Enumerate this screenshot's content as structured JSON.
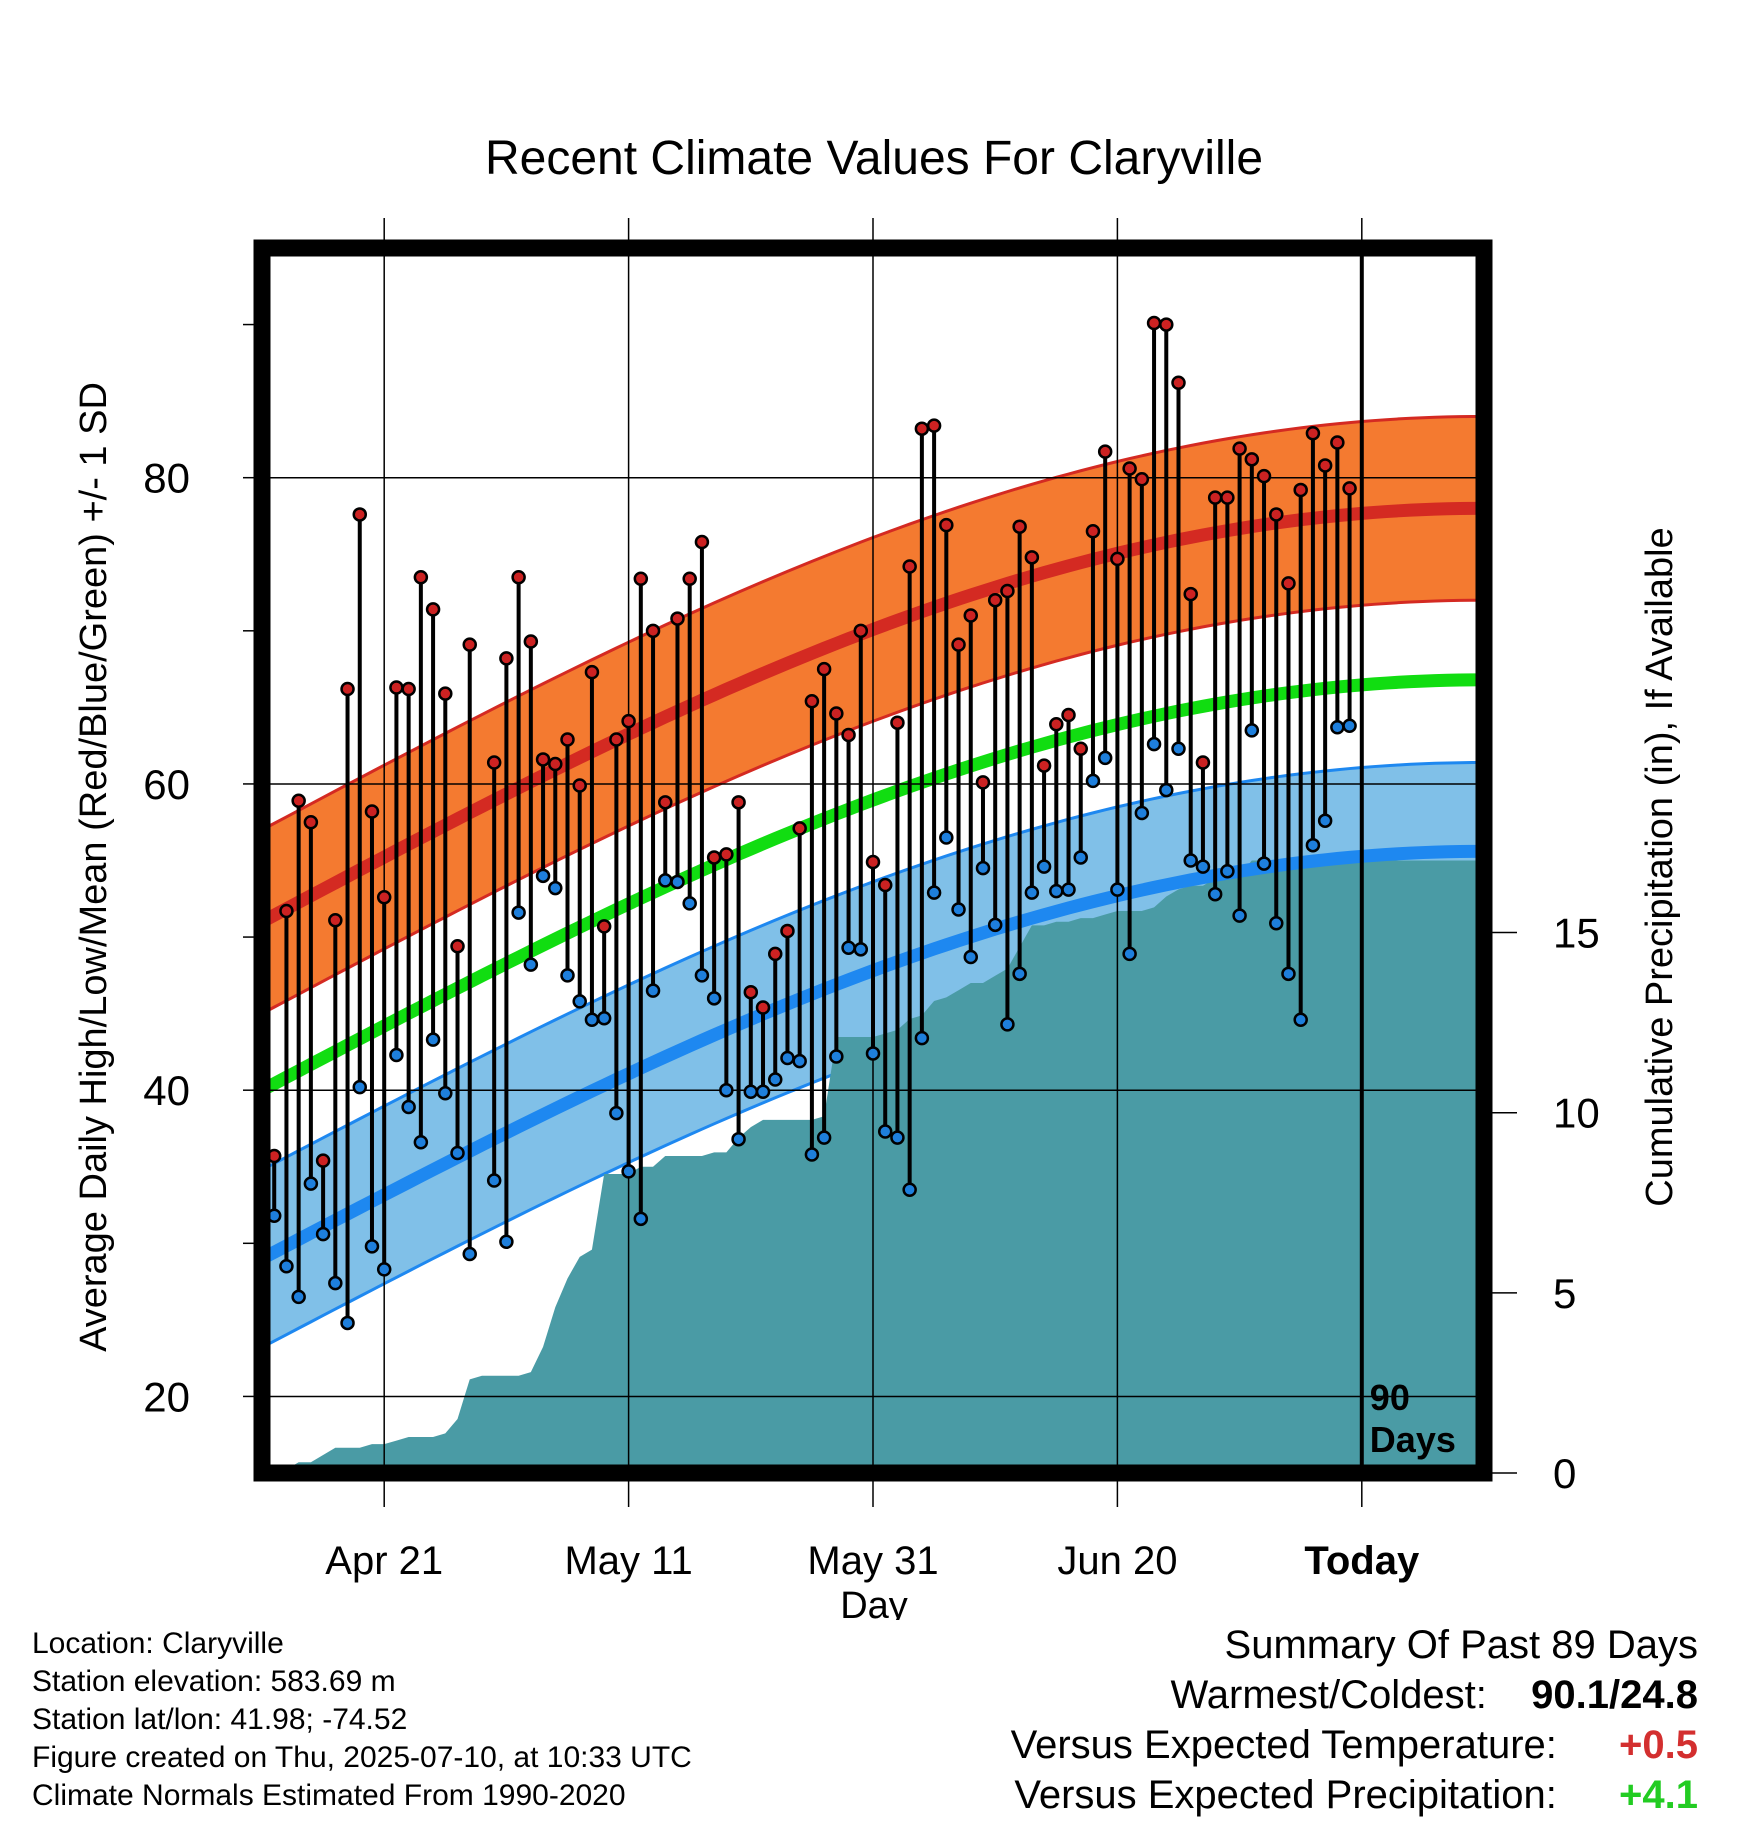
{
  "chart_data": {
    "type": "line",
    "title": "Recent Climate Values For Claryville",
    "xlabel": "Day",
    "ylabel_left": "Average Daily High/Low/Mean (Red/Blue/Green) +/- 1 SD",
    "ylabel_right": "Cumulative Precipitation (in), If Available",
    "x_ticks": [
      "Apr 21",
      "May 11",
      "May 31",
      "Jun 20",
      "Today"
    ],
    "x_tick_day_index": [
      10,
      30,
      50,
      70,
      90
    ],
    "y_left_ticks": [
      "20",
      "40",
      "60",
      "80"
    ],
    "y_right_ticks": [
      "0",
      "5",
      "10",
      "15"
    ],
    "ylim_left": [
      15,
      95
    ],
    "ylim_right": [
      0,
      34
    ],
    "xlim_days": [
      0,
      100
    ],
    "today_marker_label": [
      "90",
      "Days"
    ],
    "normal_high": {
      "mean": [
        51,
        78
      ],
      "sd": 6
    },
    "normal_low": {
      "mean": [
        29,
        55.6
      ],
      "sd": 5.8
    },
    "normal_avg": {
      "mean": [
        40,
        66.8
      ]
    },
    "highs": [
      40.3,
      35.7,
      51.7,
      58.9,
      57.5,
      35.4,
      51.1,
      66.2,
      77.6,
      58.2,
      52.6,
      66.3,
      66.2,
      73.5,
      71.4,
      65.9,
      49.4,
      69.1,
      null,
      61.4,
      68.2,
      73.5,
      69.3,
      61.6,
      61.3,
      62.9,
      59.9,
      67.3,
      50.7,
      62.9,
      64.1,
      73.4,
      70.0,
      58.8,
      70.8,
      73.4,
      75.8,
      55.2,
      55.4,
      58.8,
      46.4,
      45.4,
      48.9,
      50.4,
      57.1,
      65.4,
      67.5,
      64.6,
      63.2,
      70.0,
      54.9,
      53.4,
      64.0,
      74.2,
      83.2,
      83.4,
      76.9,
      69.1,
      71.0,
      60.1,
      72.0,
      72.6,
      76.8,
      74.8,
      61.2,
      63.9,
      64.5,
      62.3,
      76.5,
      81.7,
      74.7,
      80.6,
      79.9,
      90.1,
      90.0,
      86.2,
      72.4,
      61.4,
      78.7,
      78.7,
      81.9,
      81.2,
      80.1,
      77.6,
      73.1,
      79.2,
      82.9,
      80.8,
      82.3,
      79.3
    ],
    "lows": [
      28.7,
      31.8,
      28.5,
      26.5,
      33.9,
      30.6,
      27.4,
      24.8,
      40.2,
      29.8,
      28.3,
      42.3,
      38.9,
      36.6,
      43.3,
      39.8,
      35.9,
      29.3,
      null,
      34.1,
      30.1,
      51.6,
      48.2,
      54.0,
      53.2,
      47.5,
      45.8,
      44.6,
      44.7,
      38.5,
      34.7,
      31.6,
      46.5,
      53.7,
      53.6,
      52.2,
      47.5,
      46.0,
      40.0,
      36.8,
      39.9,
      39.9,
      40.7,
      42.1,
      41.9,
      35.8,
      36.9,
      42.2,
      49.3,
      49.2,
      42.4,
      37.3,
      36.9,
      33.5,
      43.4,
      52.9,
      56.5,
      51.8,
      48.7,
      54.5,
      50.8,
      44.3,
      47.6,
      52.9,
      54.6,
      53.0,
      53.1,
      55.2,
      60.2,
      61.7,
      53.1,
      48.9,
      58.1,
      62.6,
      59.6,
      62.3,
      55.0,
      54.6,
      52.8,
      54.3,
      51.4,
      63.5,
      54.8,
      50.9,
      47.6,
      44.6,
      56.0,
      57.6,
      63.7,
      63.8
    ],
    "precip_cumulative": [
      0.0,
      0.1,
      0.3,
      0.3,
      0.5,
      0.7,
      0.7,
      0.7,
      0.8,
      0.8,
      0.9,
      1.0,
      1.0,
      1.0,
      1.1,
      1.5,
      2.6,
      2.7,
      2.7,
      2.7,
      2.7,
      2.8,
      3.5,
      4.6,
      5.4,
      6.0,
      6.2,
      8.3,
      8.3,
      8.3,
      8.5,
      8.5,
      8.8,
      8.8,
      8.8,
      8.8,
      8.9,
      8.9,
      9.3,
      9.6,
      9.8,
      9.8,
      9.8,
      9.8,
      9.8,
      9.9,
      12.1,
      12.1,
      12.1,
      12.1,
      12.2,
      12.3,
      12.6,
      12.7,
      13.1,
      13.2,
      13.4,
      13.6,
      13.6,
      13.8,
      14.0,
      14.6,
      15.2,
      15.2,
      15.3,
      15.3,
      15.4,
      15.4,
      15.5,
      15.6,
      15.6,
      15.6,
      15.7,
      16.0,
      16.2,
      16.3,
      16.3,
      16.5,
      16.5,
      16.6,
      17.0,
      17.0,
      17.0
    ]
  },
  "footer": {
    "location": "Location: Claryville",
    "elevation": "Station elevation: 583.69 m",
    "latlon": "Station lat/lon: 41.98; -74.52",
    "created": "Figure created on Thu, 2025-07-10, at 10:33 UTC",
    "normals": "Climate Normals Estimated From 1990-2020"
  },
  "summary": {
    "heading": "Summary Of Past 89 Days",
    "warm_cold_label": "Warmest/Coldest:",
    "warm_cold_value": "90.1/24.8",
    "temp_label": "Versus Expected Temperature:",
    "temp_value": "+0.5",
    "temp_color": "#d32f2f",
    "precip_label": "Versus Expected Precipitation:",
    "precip_value": "+4.1",
    "precip_color": "#22cc22"
  },
  "colors": {
    "high_band": "#f47a30",
    "high_line": "#d42a22",
    "low_band": "#80c0e8",
    "low_line": "#1e88f0",
    "mean_line": "#11dd11",
    "precip_fill": "#4a9ba5",
    "high_dot": "#cc2222",
    "low_dot": "#1e7fdc"
  }
}
